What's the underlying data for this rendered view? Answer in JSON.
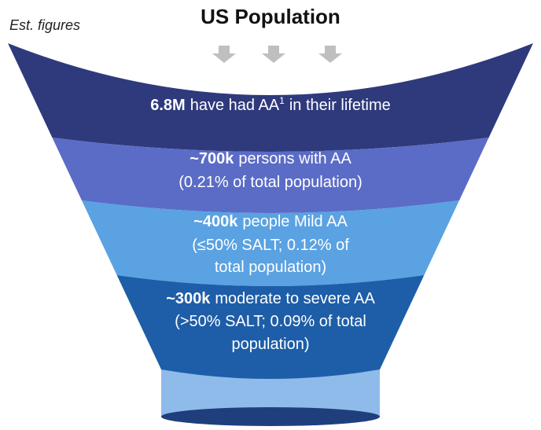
{
  "title": "US Population",
  "note": "Est. figures",
  "levels": [
    {
      "highlight": "6.8M",
      "lines": [
        "have had AA"
      ],
      "sup": "1",
      "tail": "in their lifetime"
    },
    {
      "highlight": "~700k",
      "lines": [
        "persons with AA",
        "(0.21% of total population)"
      ]
    },
    {
      "highlight": "~400k",
      "lines": [
        "people Mild AA",
        "(≤50% SALT; 0.12% of",
        "total population)"
      ]
    },
    {
      "highlight": "~300k",
      "lines": [
        "moderate to severe AA",
        "(>50% SALT; 0.09% of total",
        "population)"
      ]
    }
  ]
}
